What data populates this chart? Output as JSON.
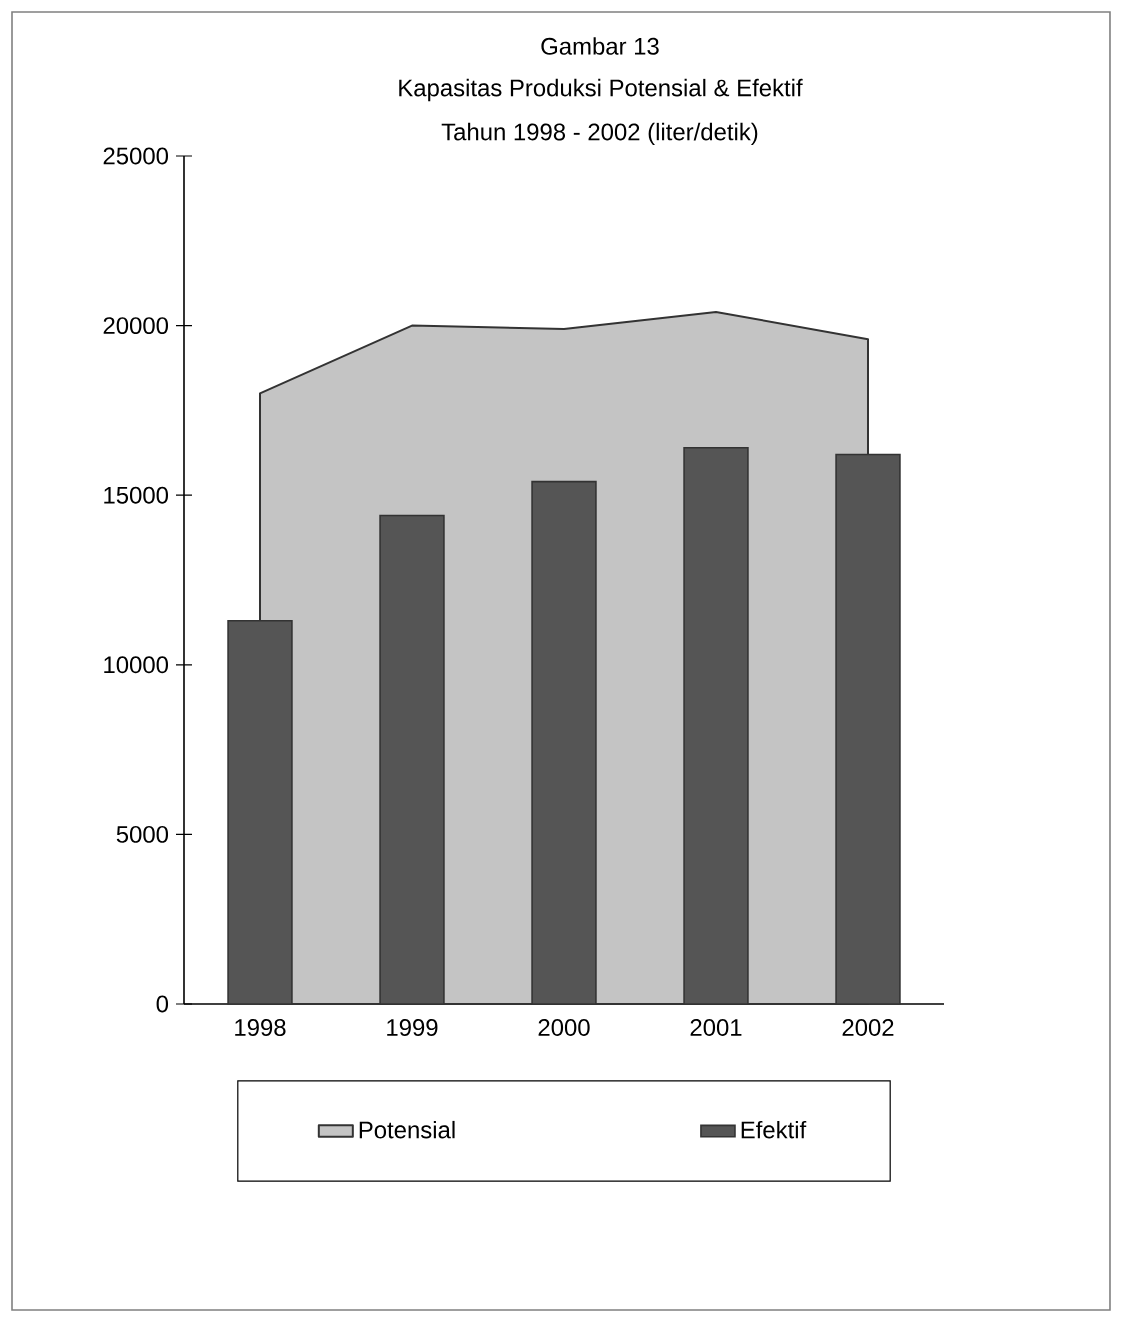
{
  "chart_data": {
    "type": "bar",
    "title": "Kapasitas Produksi Potensial & Efektif",
    "subtitle": "Tahun 1998 - 2002 (liter/detik)",
    "annotations": [
      "Gambar 13"
    ],
    "categories": [
      "1998",
      "1999",
      "2000",
      "2001",
      "2002"
    ],
    "series": [
      {
        "name": "Potensial",
        "type": "area",
        "color": "#c4c4c4",
        "values": [
          18000,
          20000,
          19900,
          20400,
          19600
        ]
      },
      {
        "name": "Efektif",
        "color": "#555555",
        "values": [
          11300,
          14400,
          15400,
          16400,
          16200
        ]
      }
    ],
    "ylim": [
      0,
      25000
    ],
    "yticks": [
      0,
      5000,
      10000,
      15000,
      20000,
      25000
    ],
    "legend": "bottom"
  }
}
